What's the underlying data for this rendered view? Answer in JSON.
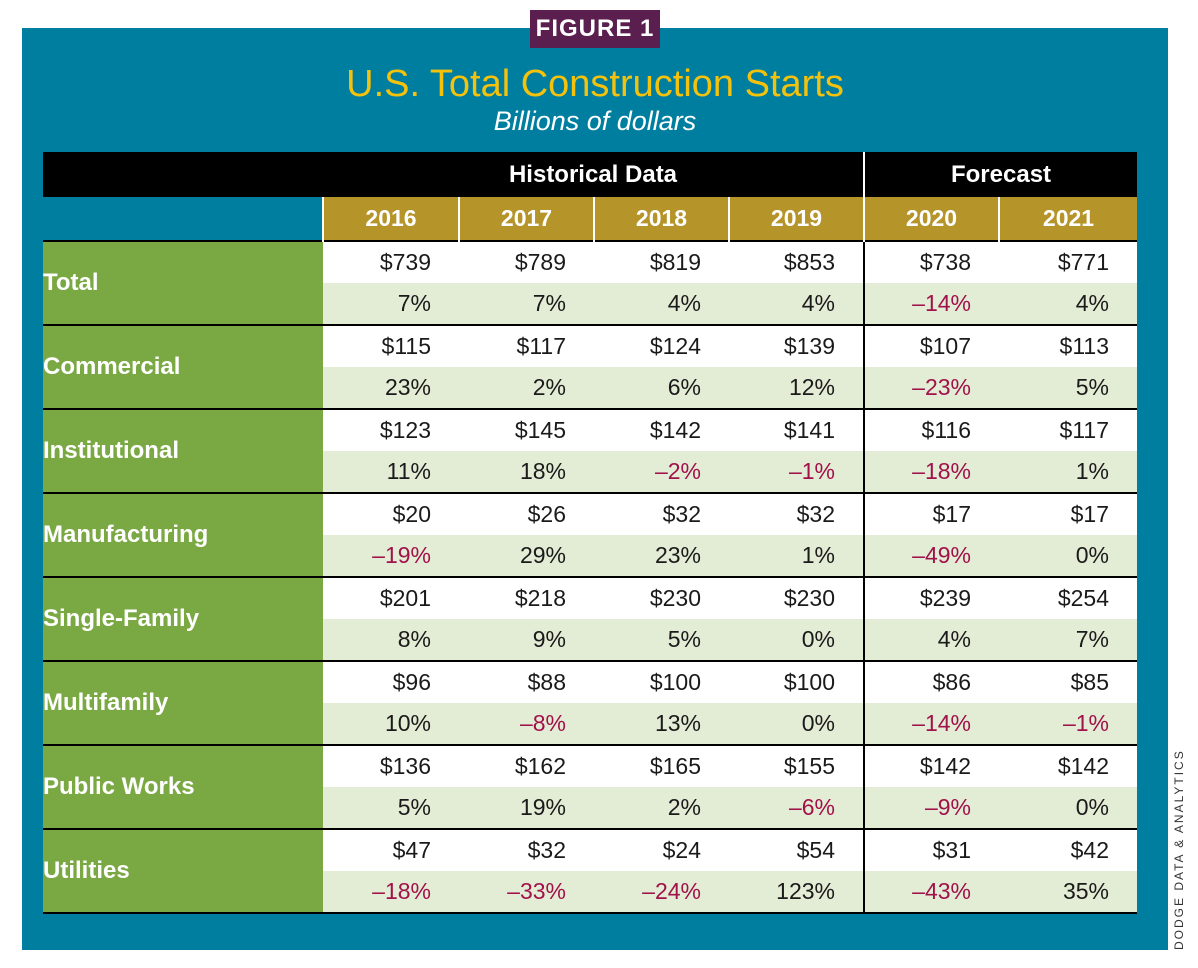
{
  "figure_label": "FIGURE 1",
  "title": "U.S. Total Construction Starts",
  "subtitle": "Billions of dollars",
  "credit": "DODGE DATA & ANALYTICS",
  "colors": {
    "panel": "#007ea0",
    "badge": "#5a1f4f",
    "title": "#f4c20d",
    "year_header": "#b5942a",
    "category": "#7aa843",
    "pct_row": "#e3ecd5",
    "negative": "#a1124a"
  },
  "chart_data": {
    "type": "table",
    "title": "U.S. Total Construction Starts",
    "subtitle": "Billions of dollars",
    "column_groups": [
      {
        "label": "Historical Data",
        "years": [
          "2016",
          "2017",
          "2018",
          "2019"
        ]
      },
      {
        "label": "Forecast",
        "years": [
          "2020",
          "2021"
        ]
      }
    ],
    "years": [
      "2016",
      "2017",
      "2018",
      "2019",
      "2020",
      "2021"
    ],
    "rows": [
      {
        "category": "Total",
        "values": [
          "$739",
          "$789",
          "$819",
          "$853",
          "$738",
          "$771"
        ],
        "changes": [
          "7%",
          "7%",
          "4%",
          "4%",
          "–14%",
          "4%"
        ]
      },
      {
        "category": "Commercial",
        "values": [
          "$115",
          "$117",
          "$124",
          "$139",
          "$107",
          "$113"
        ],
        "changes": [
          "23%",
          "2%",
          "6%",
          "12%",
          "–23%",
          "5%"
        ]
      },
      {
        "category": "Institutional",
        "values": [
          "$123",
          "$145",
          "$142",
          "$141",
          "$116",
          "$117"
        ],
        "changes": [
          "11%",
          "18%",
          "–2%",
          "–1%",
          "–18%",
          "1%"
        ]
      },
      {
        "category": "Manufacturing",
        "values": [
          "$20",
          "$26",
          "$32",
          "$32",
          "$17",
          "$17"
        ],
        "changes": [
          "–19%",
          "29%",
          "23%",
          "1%",
          "–49%",
          "0%"
        ]
      },
      {
        "category": "Single-Family",
        "values": [
          "$201",
          "$218",
          "$230",
          "$230",
          "$239",
          "$254"
        ],
        "changes": [
          "8%",
          "9%",
          "5%",
          "0%",
          "4%",
          "7%"
        ]
      },
      {
        "category": "Multifamily",
        "values": [
          "$96",
          "$88",
          "$100",
          "$100",
          "$86",
          "$85"
        ],
        "changes": [
          "10%",
          "–8%",
          "13%",
          "0%",
          "–14%",
          "–1%"
        ]
      },
      {
        "category": "Public Works",
        "values": [
          "$136",
          "$162",
          "$165",
          "$155",
          "$142",
          "$142"
        ],
        "changes": [
          "5%",
          "19%",
          "2%",
          "–6%",
          "–9%",
          "0%"
        ]
      },
      {
        "category": "Utilities",
        "values": [
          "$47",
          "$32",
          "$24",
          "$54",
          "$31",
          "$42"
        ],
        "changes": [
          "–18%",
          "–33%",
          "–24%",
          "123%",
          "–43%",
          "35%"
        ]
      }
    ]
  }
}
